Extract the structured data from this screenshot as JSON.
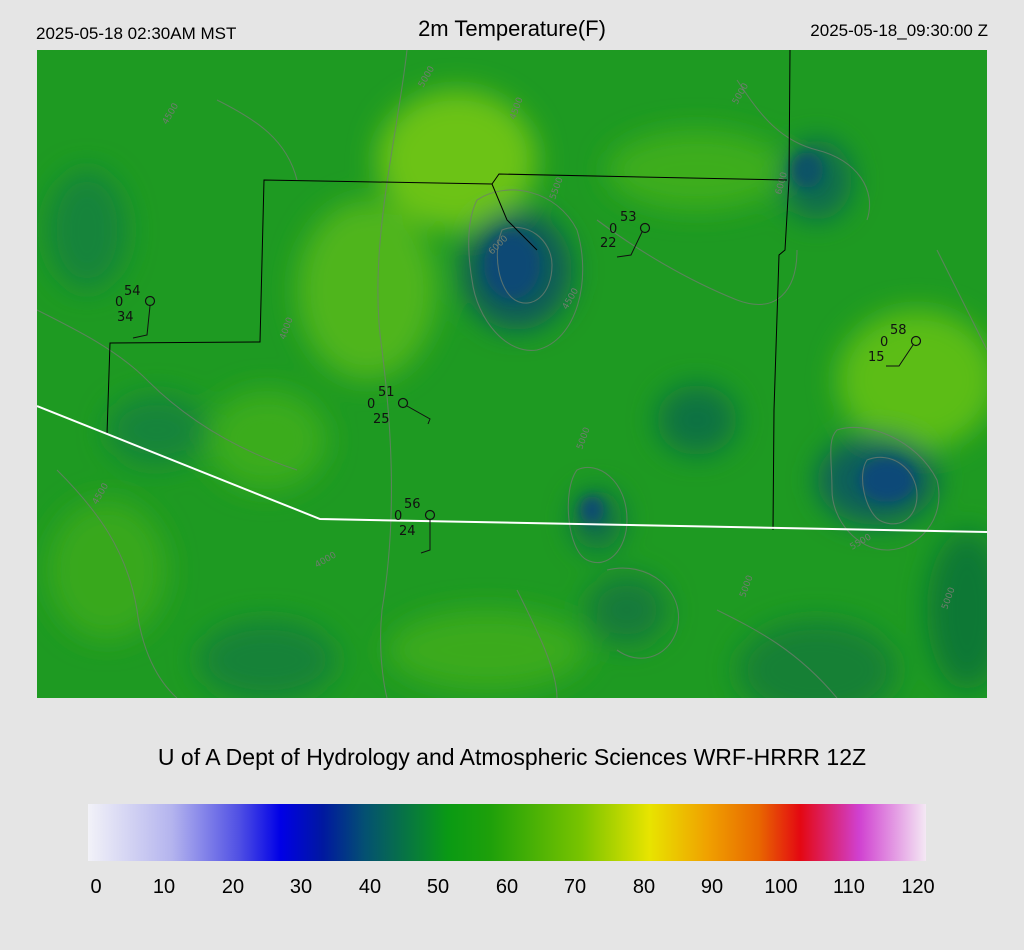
{
  "header": {
    "local_time": "2025-05-18 02:30AM MST",
    "title": "2m Temperature(F)",
    "utc_time": "2025-05-18_09:30:00 Z"
  },
  "credit": "U of A Dept of Hydrology and Atmospheric Sciences WRF-HRRR 12Z",
  "colorbar": {
    "ticks": [
      "0",
      "10",
      "20",
      "30",
      "40",
      "50",
      "60",
      "70",
      "80",
      "90",
      "100",
      "110",
      "120"
    ]
  },
  "stations": [
    {
      "temp": "54",
      "cloud": "0",
      "dewpoint": "34"
    },
    {
      "temp": "53",
      "cloud": "0",
      "dewpoint": "22"
    },
    {
      "temp": "51",
      "cloud": "0",
      "dewpoint": "25"
    },
    {
      "temp": "56",
      "cloud": "0",
      "dewpoint": "24"
    },
    {
      "temp": "58",
      "cloud": "0",
      "dewpoint": "15"
    }
  ],
  "contour_labels": [
    "4500",
    "5000",
    "5500",
    "6000"
  ],
  "colors": {
    "background": "#e5e5e5",
    "map_base": "#1e9a22",
    "boundary_white": "#ffffff",
    "county_line": "#000000",
    "contour": "#6f7d6f"
  }
}
